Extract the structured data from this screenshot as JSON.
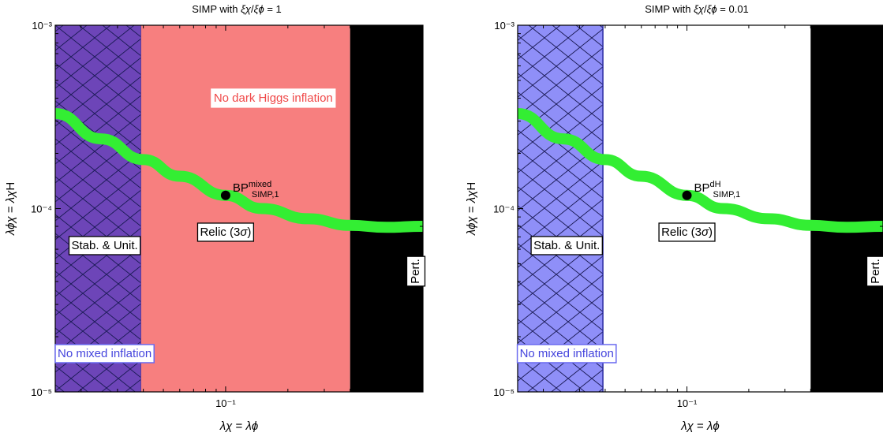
{
  "chart_data": [
    {
      "type": "area",
      "title": "SIMP with ξχ/ξϕ = 1",
      "xlabel": "λχ = λϕ",
      "ylabel": "λϕχ = λχH",
      "xscale": "log",
      "yscale": "log",
      "xlim": [
        0.015,
        0.9
      ],
      "ylim": [
        1e-05,
        0.001
      ],
      "x_ticks": [
        {
          "value": 0.1,
          "label": "10⁻¹"
        }
      ],
      "y_ticks": [
        {
          "value": 1e-05,
          "label": "10⁻⁵"
        },
        {
          "value": 0.0001,
          "label": "10⁻⁴"
        },
        {
          "value": 0.001,
          "label": "10⁻³"
        }
      ],
      "regions": [
        {
          "name": "no-mixed-inflation",
          "x_range": [
            0.015,
            0.039
          ],
          "color": "#6d45b8",
          "hatched": true
        },
        {
          "name": "no-dark-higgs-inflation",
          "x_range": [
            0.039,
            0.4
          ],
          "color": "#f77f7f"
        },
        {
          "name": "perturbativity",
          "x_range": [
            0.4,
            0.9
          ],
          "color": "#000000"
        }
      ],
      "relic_curve": {
        "color": "#33ee33",
        "x": [
          0.015,
          0.025,
          0.04,
          0.06,
          0.1,
          0.15,
          0.25,
          0.4,
          0.6,
          0.9
        ],
        "y": [
          0.00033,
          0.00024,
          0.000185,
          0.00015,
          0.000118,
          0.0001,
          8.8e-05,
          8.1e-05,
          7.9e-05,
          8e-05
        ]
      },
      "benchmark": {
        "x": 0.1,
        "y": 0.000118,
        "label": "BP",
        "superscript": "mixed",
        "subscript": "SIMP,1"
      },
      "labels": {
        "region_top": "No dark Higgs inflation",
        "stability": "Stab. & Unit.",
        "relic": "Relic (3σ)",
        "no_mixed": "No mixed inflation",
        "pert": "Pert."
      }
    },
    {
      "type": "area",
      "title": "SIMP with ξχ/ξϕ = 0.01",
      "xlabel": "λχ = λϕ",
      "ylabel": "λϕχ = λχH",
      "xscale": "log",
      "yscale": "log",
      "xlim": [
        0.015,
        0.9
      ],
      "ylim": [
        1e-05,
        0.001
      ],
      "x_ticks": [
        {
          "value": 0.1,
          "label": "10⁻¹"
        }
      ],
      "y_ticks": [
        {
          "value": 1e-05,
          "label": "10⁻⁵"
        },
        {
          "value": 0.0001,
          "label": "10⁻⁴"
        },
        {
          "value": 0.001,
          "label": "10⁻³"
        }
      ],
      "regions": [
        {
          "name": "no-mixed-inflation",
          "x_range": [
            0.015,
            0.039
          ],
          "color": "#8f8ff8",
          "hatched": true
        },
        {
          "name": "perturbativity",
          "x_range": [
            0.4,
            0.9
          ],
          "color": "#000000"
        }
      ],
      "relic_curve": {
        "color": "#33ee33",
        "x": [
          0.015,
          0.025,
          0.04,
          0.06,
          0.1,
          0.15,
          0.25,
          0.4,
          0.6,
          0.9
        ],
        "y": [
          0.00033,
          0.00024,
          0.000185,
          0.00015,
          0.000118,
          0.0001,
          8.8e-05,
          8.1e-05,
          7.9e-05,
          8e-05
        ]
      },
      "benchmark": {
        "x": 0.1,
        "y": 0.000118,
        "label": "BP",
        "superscript": "dH",
        "subscript": "SIMP,1"
      },
      "labels": {
        "region_top": "",
        "stability": "Stab. & Unit.",
        "relic": "Relic (3σ)",
        "no_mixed": "No mixed inflation",
        "pert": "Pert."
      }
    }
  ]
}
